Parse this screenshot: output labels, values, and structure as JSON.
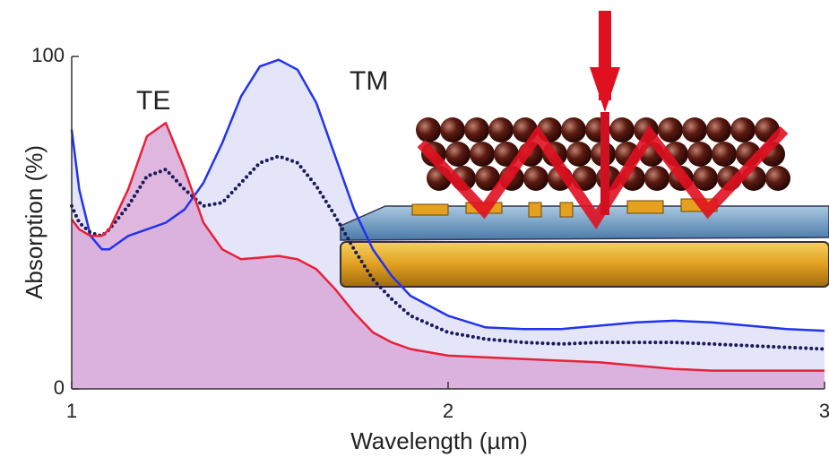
{
  "chart_data": {
    "type": "line",
    "xlabel": "Wavelength (µm)",
    "ylabel": "Absorption (%)",
    "x": [
      1.0,
      1.02,
      1.05,
      1.08,
      1.1,
      1.15,
      1.2,
      1.25,
      1.3,
      1.35,
      1.4,
      1.45,
      1.5,
      1.55,
      1.6,
      1.65,
      1.7,
      1.75,
      1.8,
      1.85,
      1.9,
      2.0,
      2.1,
      2.2,
      2.3,
      2.4,
      2.5,
      2.6,
      2.7,
      2.8,
      2.9,
      3.0
    ],
    "series": [
      {
        "name": "TM",
        "color": "#2233ee",
        "fill": "#dfe1f8",
        "values": [
          78,
          60,
          46,
          42,
          42,
          46,
          48,
          50,
          54,
          62,
          74,
          88,
          97,
          99,
          96,
          86,
          70,
          54,
          42,
          34,
          28,
          22,
          18.5,
          18,
          18,
          19,
          20,
          20.5,
          20,
          19,
          18,
          17.5
        ]
      },
      {
        "color": "#1a1a5a",
        "style": "dotted",
        "values": [
          55,
          50,
          47,
          46,
          48,
          55,
          64,
          66,
          60,
          55,
          56,
          62,
          68,
          70,
          68,
          61,
          52,
          42,
          33,
          27,
          22,
          17,
          15,
          14,
          13.5,
          14,
          14,
          14,
          13.5,
          13,
          12.5,
          12
        ]
      },
      {
        "name": "TE",
        "color": "#e8203a",
        "fill": "#d9a9d8",
        "values": [
          51,
          48,
          46,
          46,
          48,
          60,
          76,
          80,
          66,
          50,
          42,
          39,
          39.5,
          40,
          39,
          36,
          30,
          23,
          17,
          14,
          12,
          10,
          9.5,
          9,
          8.5,
          8,
          7,
          6,
          5.5,
          5.5,
          5.5,
          5.5
        ]
      }
    ],
    "xlim": [
      1,
      3
    ],
    "xticks": [
      1,
      2,
      3
    ],
    "ylim": [
      0,
      100
    ],
    "yticks": [
      0,
      100
    ]
  }
}
